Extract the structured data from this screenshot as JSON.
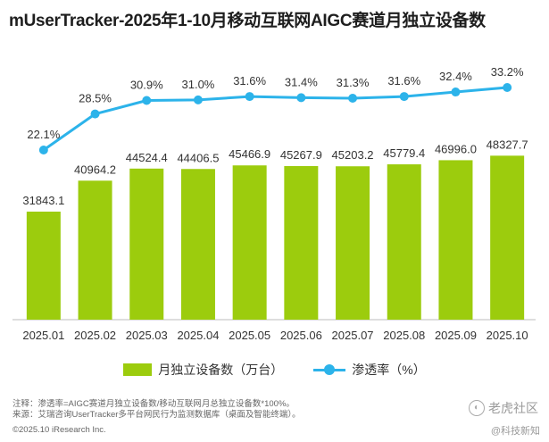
{
  "title": "mUserTracker-2025年1-10月移动互联网AIGC赛道月独立设备数",
  "chart_data": {
    "type": "bar+line",
    "categories": [
      "2025.01",
      "2025.02",
      "2025.03",
      "2025.04",
      "2025.05",
      "2025.06",
      "2025.07",
      "2025.08",
      "2025.09",
      "2025.10"
    ],
    "series": [
      {
        "name": "月独立设备数（万台）",
        "type": "bar",
        "values": [
          31843.1,
          40964.2,
          44524.4,
          44406.5,
          45466.9,
          45267.9,
          45203.2,
          45779.4,
          46996.0,
          48327.7
        ],
        "labels": [
          "31843.1",
          "40964.2",
          "44524.4",
          "44406.5",
          "45466.9",
          "45267.9",
          "45203.2",
          "45779.4",
          "46996.0",
          "48327.7"
        ],
        "color": "#9ccc0d",
        "ylim": [
          0,
          70000
        ]
      },
      {
        "name": "渗透率（%）",
        "type": "line",
        "values": [
          22.1,
          28.5,
          30.9,
          31.0,
          31.6,
          31.4,
          31.3,
          31.6,
          32.4,
          33.2
        ],
        "labels": [
          "22.1%",
          "28.5%",
          "30.9%",
          "31.0%",
          "31.6%",
          "31.4%",
          "31.3%",
          "31.6%",
          "32.4%",
          "33.2%"
        ],
        "color": "#2cb3ea"
      }
    ],
    "xlabel": "",
    "ylabel": ""
  },
  "legend": {
    "bar_label": "月独立设备数（万台）",
    "line_label": "渗透率（%）"
  },
  "notes": {
    "note1": "注释：渗透率=AIGC赛道月独立设备数/移动互联网月总独立设备数*100%。",
    "note2": "来源：艾瑞咨询UserTracker多平台网民行为监测数据库（桌面及智能终端）。",
    "copyright": "©2025.10 iResearch Inc."
  },
  "watermark": {
    "brand": "老虎社区",
    "sub": "@科技新知"
  }
}
